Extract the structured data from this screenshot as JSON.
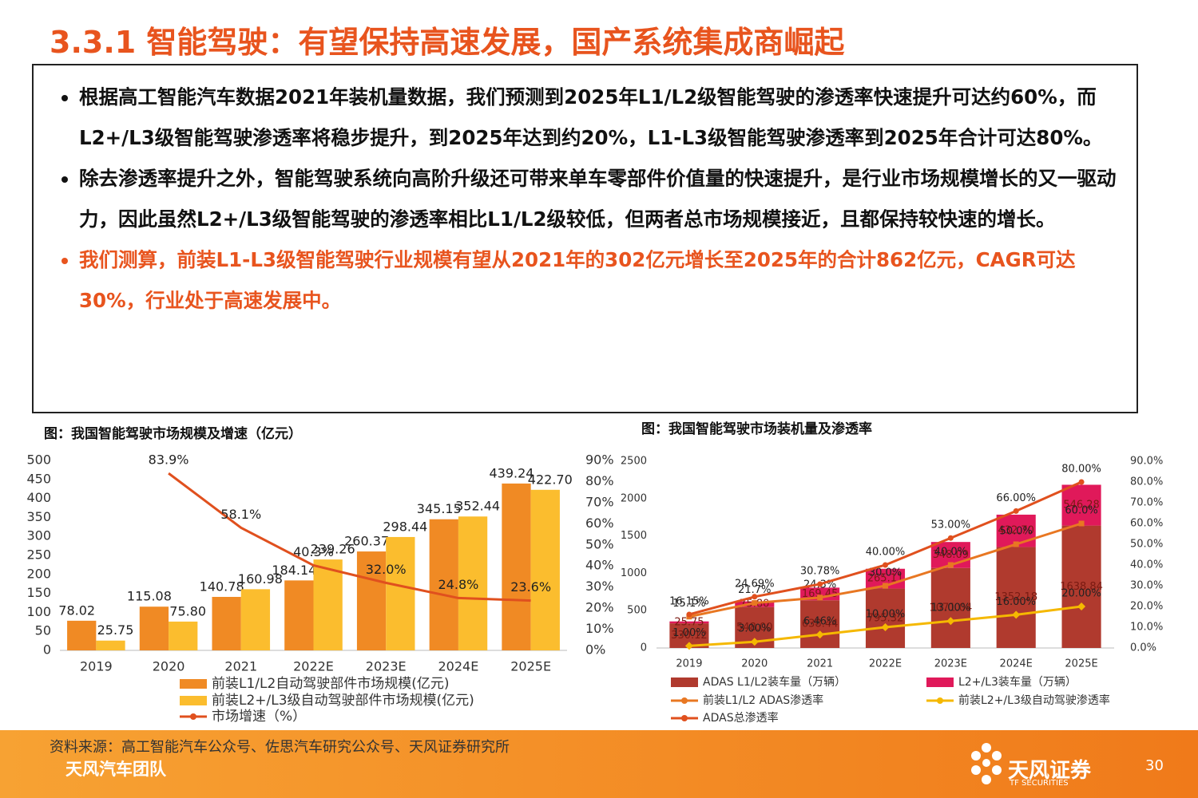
{
  "title": "3.3.1 智能驾驶：有望保持高速发展，国产系统集成商崛起",
  "bullets": [
    "根据高工智能汽车数据2021年装机量数据，我们预测到2025年L1/L2级智能驾驶的渗透率快速提升可达约60%，而L2+/L3级智能驾驶渗透率将稳步提升，到2025年达到约20%，L1-L3级智能驾驶渗透率到2025年合计可达80%。",
    "除去渗透率提升之外，智能驾驶系统向高阶升级还可带来单车零部件价值量的快速提升，是行业市场规模增长的又一驱动力，因此虽然L2+/L3级智能驾驶的渗透率相比L1/L2级较低，但两者总市场规模接近，且都保持较快速的增长。",
    "我们测算，前装L1-L3级智能驾驶行业规模有望从2021年的302亿元增长至2025年的合计862亿元，CAGR可达 30%，行业处于高速发展中。"
  ],
  "source": "资料来源：高工智能汽车公众号、佐思汽车研究公众号、天风证券研究所",
  "team": "天风汽车团队",
  "logo": {
    "name": "天风证券",
    "sub": "TF SECURITIES"
  },
  "page_number": "30",
  "chart_data": [
    {
      "type": "bar",
      "title": "图：我国智能驾驶市场规模及增速（亿元）",
      "categories": [
        "2019",
        "2020",
        "2021",
        "2022E",
        "2023E",
        "2024E",
        "2025E"
      ],
      "series": [
        {
          "name": "前装L1/L2自动驾驶部件市场规模(亿元)",
          "color": "#f08a24",
          "values": [
            78.02,
            115.08,
            140.78,
            184.14,
            260.37,
            345.15,
            439.24
          ],
          "value_labels": [
            "78.02",
            "115.08",
            "140.78",
            "184.14",
            "260.37",
            "345.15",
            "439.24"
          ]
        },
        {
          "name": "前装L2+/L3级自动驾驶部件市场规模(亿元)",
          "color": "#fbbd2e",
          "values": [
            25.75,
            75.8,
            160.98,
            239.26,
            298.44,
            352.44,
            422.7
          ],
          "value_labels": [
            "25.75",
            "75.80",
            "160.98",
            "239.26",
            "298.44",
            "352.44",
            "422.70"
          ]
        },
        {
          "name": "市场增速（%）",
          "color": "#e0501e",
          "type": "line",
          "axis": "y2",
          "values": [
            null,
            83.9,
            58.1,
            40.3,
            32.0,
            24.8,
            23.6
          ],
          "value_labels": [
            null,
            "83.9%",
            "58.1%",
            "40.3%",
            "32.0%",
            "24.8%",
            "23.6%"
          ]
        }
      ],
      "ylim": [
        0,
        500
      ],
      "yticks": [
        0,
        50,
        100,
        150,
        200,
        250,
        300,
        350,
        400,
        450,
        500
      ],
      "y2lim": [
        0,
        90
      ],
      "y2ticks": [
        {
          "value": 0,
          "label": "0%"
        },
        {
          "value": 10,
          "label": "10%"
        },
        {
          "value": 20,
          "label": "20%"
        },
        {
          "value": 30,
          "label": "30%"
        },
        {
          "value": 40,
          "label": "40%"
        },
        {
          "value": 50,
          "label": "50%"
        },
        {
          "value": 60,
          "label": "60%"
        },
        {
          "value": 70,
          "label": "70%"
        },
        {
          "value": 80,
          "label": "80%"
        },
        {
          "value": 90,
          "label": "90%"
        }
      ]
    },
    {
      "type": "stacked_bar",
      "title": "图：我国智能驾驶市场装机量及渗透率",
      "categories": [
        "2019",
        "2020",
        "2021",
        "2022E",
        "2023E",
        "2024E",
        "2025E"
      ],
      "series": [
        {
          "name": "ADAS L1/L2装车量（万辆）",
          "color": "#b03a2e",
          "values": [
            330.12,
            548.0,
            638.44,
            795.32,
            1071.04,
            1352.18,
            1638.84
          ],
          "value_labels": [
            "330.12",
            "548.00",
            "638.44",
            "795.32",
            "1071.04",
            "1352.18",
            "1638.84"
          ]
        },
        {
          "name": "L2+/L3装车量（万辆）",
          "color": "#e0195a",
          "values": [
            25.75,
            75.8,
            169.45,
            265.11,
            348.09,
            432.7,
            546.28
          ],
          "value_labels": [
            "25.75",
            "75.80",
            "169.45",
            "265.11",
            "348.09",
            "432.70",
            "546.28"
          ]
        },
        {
          "name": "前装L1/L2 ADAS渗透率",
          "color": "#e87722",
          "type": "line",
          "axis": "y2",
          "marker": "square",
          "values": [
            15.1,
            21.7,
            24.3,
            30.0,
            40.0,
            50.0,
            60.0
          ],
          "value_labels": [
            "15.1%",
            "21.7%",
            "24.3%",
            "30.0%",
            "40.0%",
            "50.0%",
            "60.0%"
          ]
        },
        {
          "name": "前装L2+/L3级自动驾驶渗透率",
          "color": "#f5b800",
          "type": "line",
          "axis": "y2",
          "marker": "diamond",
          "values": [
            1.0,
            3.0,
            6.46,
            10.0,
            13.0,
            16.0,
            20.0
          ],
          "value_labels": [
            "1.00%",
            "3.00%",
            "6.46%",
            "10.00%",
            "13.00%",
            "16.00%",
            "20.00%"
          ]
        },
        {
          "name": "ADAS总渗透率",
          "color": "#e0501e",
          "type": "line",
          "axis": "y2",
          "marker": "circle",
          "values": [
            16.15,
            24.69,
            30.78,
            40.0,
            53.0,
            66.0,
            80.0
          ],
          "value_labels": [
            "16.15%",
            "24.69%",
            "30.78%",
            "40.00%",
            "53.00%",
            "66.00%",
            "80.00%"
          ]
        }
      ],
      "ylim": [
        0,
        2500
      ],
      "yticks": [
        0,
        500,
        1000,
        1500,
        2000,
        2500
      ],
      "y2lim": [
        0,
        90
      ],
      "y2ticks": [
        {
          "value": 0,
          "label": "0.0%"
        },
        {
          "value": 10,
          "label": "10.0%"
        },
        {
          "value": 20,
          "label": "20.0%"
        },
        {
          "value": 30,
          "label": "30.0%"
        },
        {
          "value": 40,
          "label": "40.0%"
        },
        {
          "value": 50,
          "label": "50.0%"
        },
        {
          "value": 60,
          "label": "60.0%"
        },
        {
          "value": 70,
          "label": "70.0%"
        },
        {
          "value": 80,
          "label": "80.0%"
        },
        {
          "value": 90,
          "label": "90.0%"
        }
      ]
    }
  ]
}
